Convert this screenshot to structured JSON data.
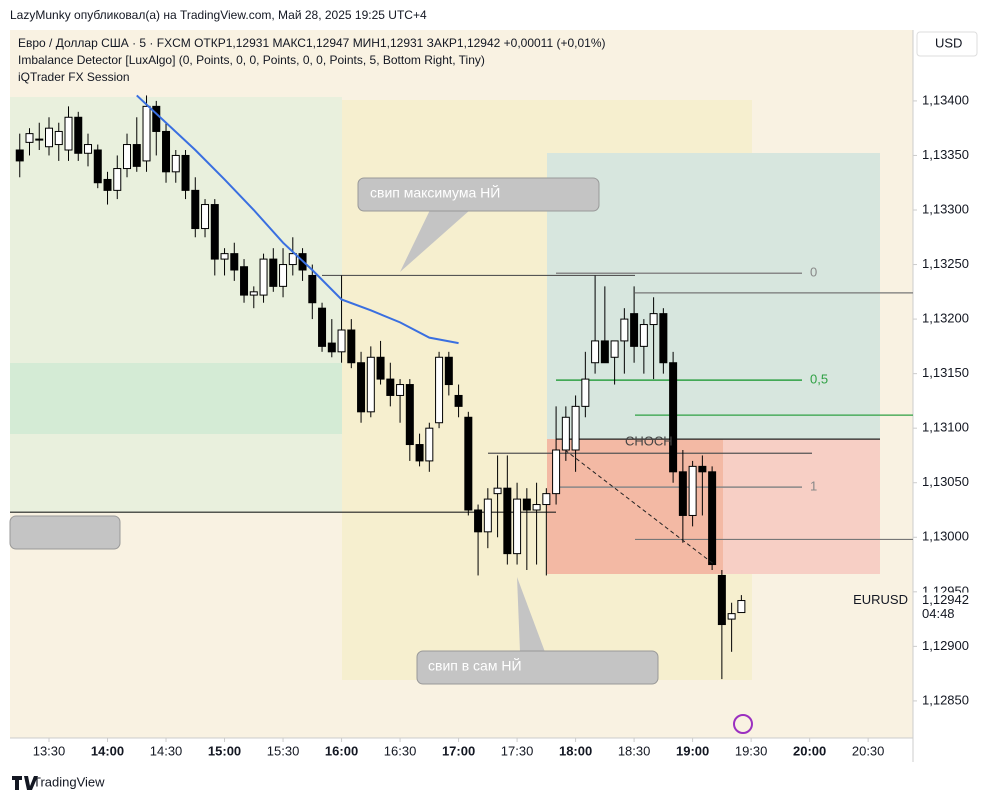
{
  "header": {
    "publisher": "LazyMunky опубликовал(а) на TradingView.com, Май 28, 2025 19:25 UTC+4",
    "legend": [
      "Евро / Доллар США · 5 · FXCM  ОТКР1,12931  МАКС1,12947  МИН1,12931  ЗАКР1,12942  +0,00011 (+0,01%)",
      "Imbalance Detector [LuxAlgo] (0, Points, 0, 0, Points, 0, 0, Points, 5, Bottom Right, Tiny)",
      "iQTrader FX Session"
    ],
    "currency": "USD"
  },
  "footer": {
    "brand": "TradingView"
  },
  "chart_data": {
    "type": "candlestick",
    "x": [
      "13:15",
      "13:20",
      "13:25",
      "13:30",
      "13:35",
      "13:40",
      "13:45",
      "13:50",
      "13:55",
      "14:00",
      "14:05",
      "14:10",
      "14:15",
      "14:20",
      "14:25",
      "14:30",
      "14:35",
      "14:40",
      "14:45",
      "14:50",
      "14:55",
      "15:00",
      "15:05",
      "15:10",
      "15:15",
      "15:20",
      "15:25",
      "15:30",
      "15:35",
      "15:40",
      "15:45",
      "15:50",
      "15:55",
      "16:00",
      "16:05",
      "16:10",
      "16:15",
      "16:20",
      "16:25",
      "16:30",
      "16:35",
      "16:40",
      "16:45",
      "16:50",
      "16:55",
      "17:00",
      "17:05",
      "17:10",
      "17:15",
      "17:20",
      "17:25",
      "17:30",
      "17:35",
      "17:40",
      "17:45",
      "17:50",
      "17:55",
      "18:00",
      "18:05",
      "18:10",
      "18:15",
      "18:20",
      "18:25",
      "18:30",
      "18:35",
      "18:40",
      "18:45",
      "18:50",
      "18:55",
      "19:00",
      "19:05",
      "19:10",
      "19:15",
      "19:20",
      "19:25"
    ],
    "open": [
      1.13355,
      1.13362,
      1.13365,
      1.13358,
      1.1336,
      1.13355,
      1.13385,
      1.13352,
      1.13355,
      1.13328,
      1.13318,
      1.13338,
      1.1336,
      1.13345,
      1.13395,
      1.13372,
      1.13335,
      1.1335,
      1.13318,
      1.13283,
      1.13305,
      1.13255,
      1.1326,
      1.13248,
      1.13222,
      1.13222,
      1.13255,
      1.1323,
      1.1325,
      1.1326,
      1.1324,
      1.1321,
      1.13178,
      1.1317,
      1.1319,
      1.1316,
      1.13115,
      1.13165,
      1.13145,
      1.1313,
      1.1314,
      1.13085,
      1.1307,
      1.13105,
      1.13165,
      1.1313,
      1.1311,
      1.13025,
      1.13005,
      1.1304,
      1.13045,
      1.12985,
      1.13035,
      1.13025,
      1.1303,
      1.1304,
      1.1308,
      1.1308,
      1.1312,
      1.1316,
      1.1318,
      1.13165,
      1.1318,
      1.13205,
      1.13175,
      1.13195,
      1.13205,
      1.1316,
      1.1306,
      1.1302,
      1.13065,
      1.1306,
      1.12965,
      1.12925,
      1.12931
    ],
    "high": [
      1.1337,
      1.13375,
      1.1338,
      1.13385,
      1.1338,
      1.13395,
      1.1339,
      1.1337,
      1.1336,
      1.13335,
      1.1335,
      1.1337,
      1.13385,
      1.13405,
      1.134,
      1.1338,
      1.13355,
      1.13355,
      1.1333,
      1.1331,
      1.1331,
      1.13265,
      1.1327,
      1.13255,
      1.1323,
      1.1326,
      1.13265,
      1.13265,
      1.13275,
      1.13265,
      1.1325,
      1.13215,
      1.132,
      1.1324,
      1.132,
      1.1317,
      1.13175,
      1.1318,
      1.1316,
      1.13145,
      1.13145,
      1.13095,
      1.13105,
      1.1317,
      1.1317,
      1.1314,
      1.13115,
      1.1303,
      1.13045,
      1.13075,
      1.13075,
      1.1305,
      1.13045,
      1.1305,
      1.13045,
      1.1312,
      1.1312,
      1.1313,
      1.1317,
      1.1324,
      1.1323,
      1.1318,
      1.1321,
      1.1323,
      1.132,
      1.1322,
      1.1321,
      1.1317,
      1.1308,
      1.1307,
      1.13075,
      1.13065,
      1.1297,
      1.1294,
      1.12947
    ],
    "low": [
      1.1333,
      1.1335,
      1.13355,
      1.1335,
      1.13345,
      1.13345,
      1.13345,
      1.1334,
      1.1332,
      1.13305,
      1.1331,
      1.1333,
      1.13335,
      1.13335,
      1.1335,
      1.13325,
      1.13325,
      1.1331,
      1.13275,
      1.13275,
      1.1324,
      1.1324,
      1.13235,
      1.13215,
      1.1321,
      1.13215,
      1.13225,
      1.1322,
      1.1324,
      1.13235,
      1.132,
      1.1317,
      1.13165,
      1.1316,
      1.13155,
      1.13105,
      1.1311,
      1.1314,
      1.1312,
      1.13105,
      1.1307,
      1.13065,
      1.1306,
      1.131,
      1.1313,
      1.1311,
      1.1302,
      1.12965,
      1.1299,
      1.13,
      1.12975,
      1.12975,
      1.1297,
      1.12975,
      1.12965,
      1.1303,
      1.1307,
      1.1306,
      1.1311,
      1.1315,
      1.1316,
      1.1314,
      1.1315,
      1.1316,
      1.1315,
      1.13145,
      1.1315,
      1.1305,
      1.12995,
      1.1301,
      1.1302,
      1.1297,
      1.1287,
      1.12895,
      1.12931
    ],
    "close": [
      1.13345,
      1.1337,
      1.13365,
      1.13375,
      1.13372,
      1.13385,
      1.13352,
      1.1336,
      1.13325,
      1.13318,
      1.13338,
      1.1336,
      1.1334,
      1.13395,
      1.13372,
      1.13335,
      1.1335,
      1.13318,
      1.13283,
      1.13305,
      1.13255,
      1.1326,
      1.13245,
      1.13222,
      1.13225,
      1.13255,
      1.1323,
      1.1325,
      1.1326,
      1.13245,
      1.13215,
      1.13175,
      1.1317,
      1.1319,
      1.1316,
      1.13115,
      1.13165,
      1.13145,
      1.1313,
      1.1314,
      1.13085,
      1.1307,
      1.131,
      1.13165,
      1.1314,
      1.1312,
      1.13025,
      1.13005,
      1.13035,
      1.13045,
      1.12985,
      1.13035,
      1.13025,
      1.1303,
      1.1304,
      1.1308,
      1.1311,
      1.1312,
      1.13145,
      1.1318,
      1.1316,
      1.1318,
      1.132,
      1.13175,
      1.13195,
      1.13205,
      1.1316,
      1.1306,
      1.1302,
      1.13065,
      1.1306,
      1.12975,
      1.1292,
      1.1293,
      1.12942
    ],
    "ma": {
      "color": "#3a6fe0",
      "x": [
        "14:15",
        "14:30",
        "14:45",
        "15:00",
        "15:15",
        "15:30",
        "15:45",
        "16:00",
        "16:15",
        "16:30",
        "16:45",
        "17:00"
      ],
      "values": [
        1.13405,
        1.1338,
        1.13355,
        1.13328,
        1.133,
        1.1327,
        1.13245,
        1.13218,
        1.13208,
        1.13197,
        1.13183,
        1.13178
      ]
    },
    "xlim": [
      "13:10",
      "20:53"
    ],
    "xticks": [
      "13:30",
      "14:00",
      "14:30",
      "15:00",
      "15:30",
      "16:00",
      "16:30",
      "17:00",
      "17:30",
      "18:00",
      "18:30",
      "19:00",
      "19:30",
      "20:00",
      "20:30"
    ],
    "ylim": [
      1.12816,
      1.13465
    ],
    "yticks": [
      {
        "value": 1.1285,
        "label": "1,12850"
      },
      {
        "value": 1.129,
        "label": "1,12900"
      },
      {
        "value": 1.1295,
        "label": "1,12950"
      },
      {
        "value": 1.13,
        "label": "1,13000"
      },
      {
        "value": 1.1305,
        "label": "1,13050"
      },
      {
        "value": 1.131,
        "label": "1,13100"
      },
      {
        "value": 1.1315,
        "label": "1,13150"
      },
      {
        "value": 1.132,
        "label": "1,13200"
      },
      {
        "value": 1.1325,
        "label": "1,13250"
      },
      {
        "value": 1.133,
        "label": "1,13300"
      },
      {
        "value": 1.1335,
        "label": "1,13350"
      },
      {
        "value": 1.134,
        "label": "1,13400"
      }
    ],
    "fib": [
      {
        "label": "0",
        "value": 1.13242
      },
      {
        "label": "0,5",
        "value": 1.13144
      },
      {
        "label": "1",
        "value": 1.13046
      }
    ],
    "levels": [
      1.13224,
      1.12998,
      1.1324,
      1.13023,
      1.13077,
      1.1309,
      1.13112
    ],
    "annotations": [
      "свип максимума НЙ",
      "свип в сам НЙ",
      "CHOCH"
    ],
    "last_price": {
      "symbol": "EURUSD",
      "value": 1.12942,
      "label": "1,12942",
      "countdown": "04:48"
    }
  }
}
